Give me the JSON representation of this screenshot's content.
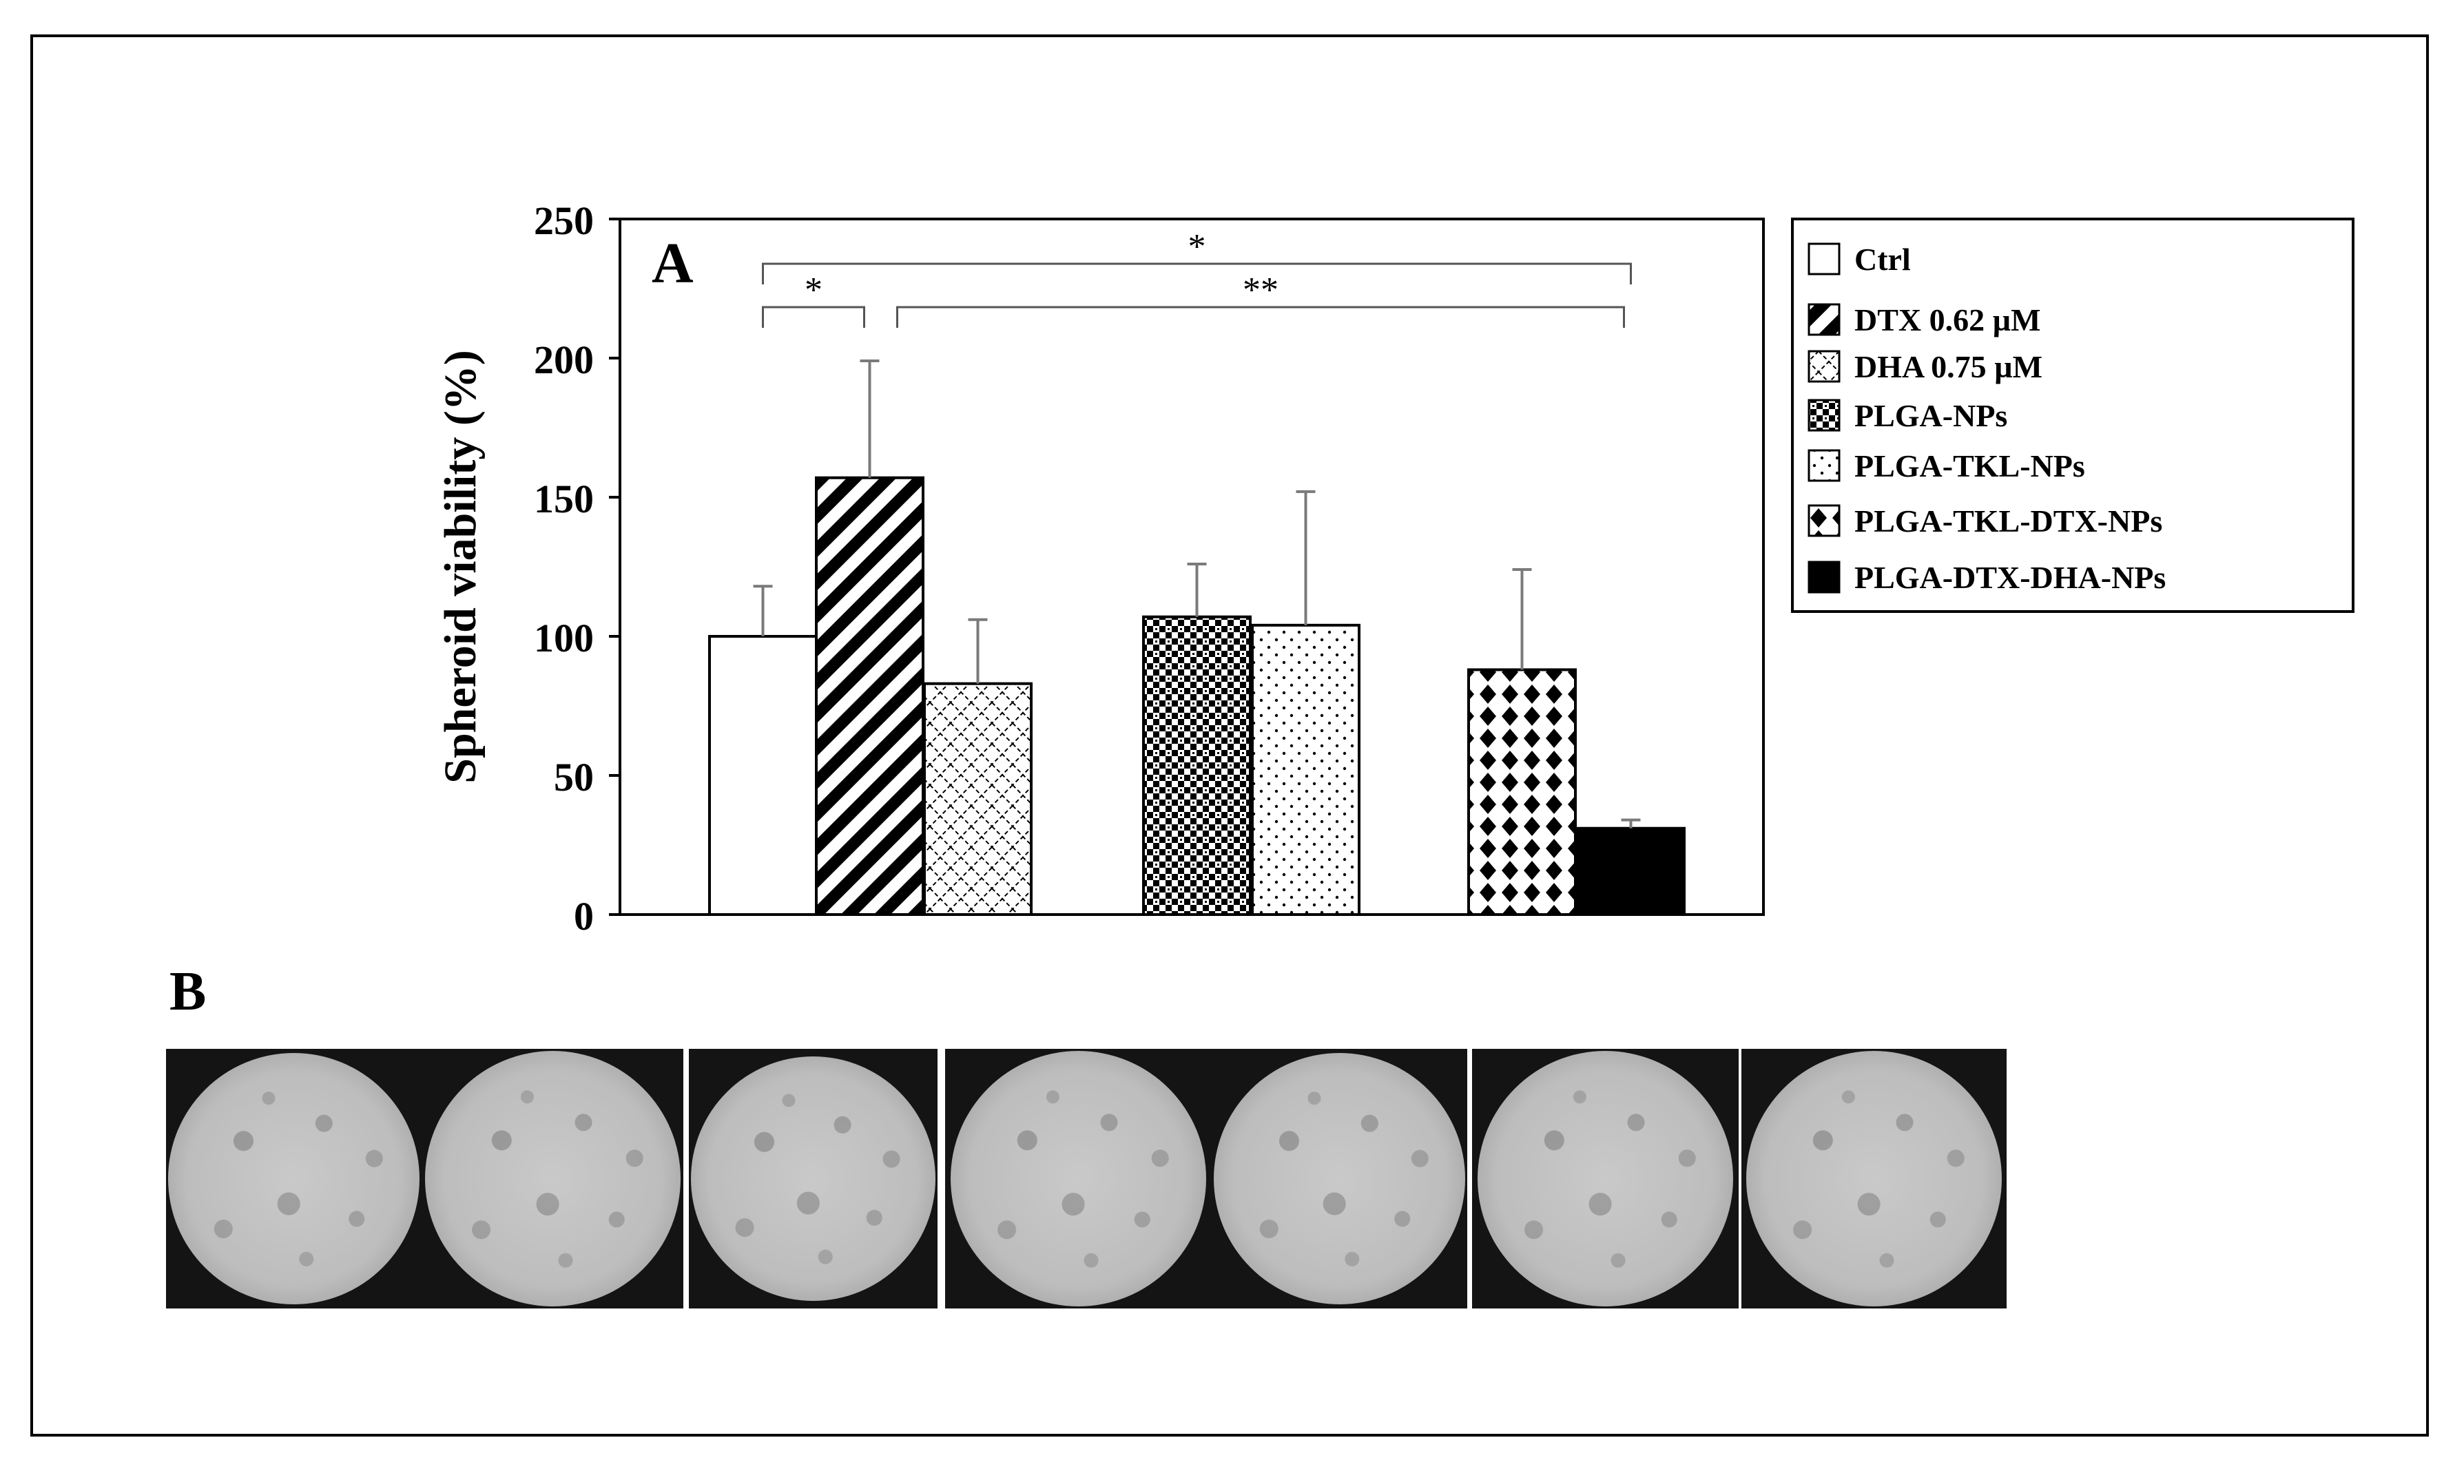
{
  "chart_data": {
    "type": "bar",
    "panel_label": "A",
    "ylabel": "Spheroid viability (%)",
    "ylim": [
      0,
      250
    ],
    "yticks": [
      0,
      50,
      100,
      150,
      200,
      250
    ],
    "series": [
      {
        "name": "Ctrl",
        "value": 100,
        "error": 18,
        "pattern": "empty",
        "group": 1
      },
      {
        "name": "DTX 0.62 µM",
        "value": 157,
        "error": 42,
        "pattern": "diagonal-stripes",
        "group": 1
      },
      {
        "name": "DHA 0.75 µM",
        "value": 83,
        "error": 23,
        "pattern": "diamond-lattice",
        "group": 1
      },
      {
        "name": "PLGA-NPs",
        "value": 107,
        "error": 19,
        "pattern": "checker",
        "group": 2
      },
      {
        "name": "PLGA-TKL-NPs",
        "value": 104,
        "error": 48,
        "pattern": "dots",
        "group": 2
      },
      {
        "name": "PLGA-TKL-DTX-NPs",
        "value": 88,
        "error": 36,
        "pattern": "diamonds",
        "group": 3
      },
      {
        "name": "PLGA-DTX-DHA-NPs",
        "value": 31,
        "error": 3,
        "pattern": "solid",
        "group": 3
      }
    ],
    "significance": [
      {
        "from": "Ctrl",
        "to": "PLGA-DTX-DHA-NPs",
        "label": "*"
      },
      {
        "from": "Ctrl",
        "to": "DTX 0.62 µM",
        "label": "*"
      },
      {
        "from": "DTX 0.62 µM",
        "to": "PLGA-DTX-DHA-NPs",
        "label": "**"
      }
    ],
    "legend_position": "right",
    "grid": false
  },
  "panel_b": {
    "label": "B",
    "image_count": 7
  },
  "colors": {
    "bar_fill": "#000000",
    "error_bar": "#7a7a7a",
    "axis": "#000000"
  }
}
